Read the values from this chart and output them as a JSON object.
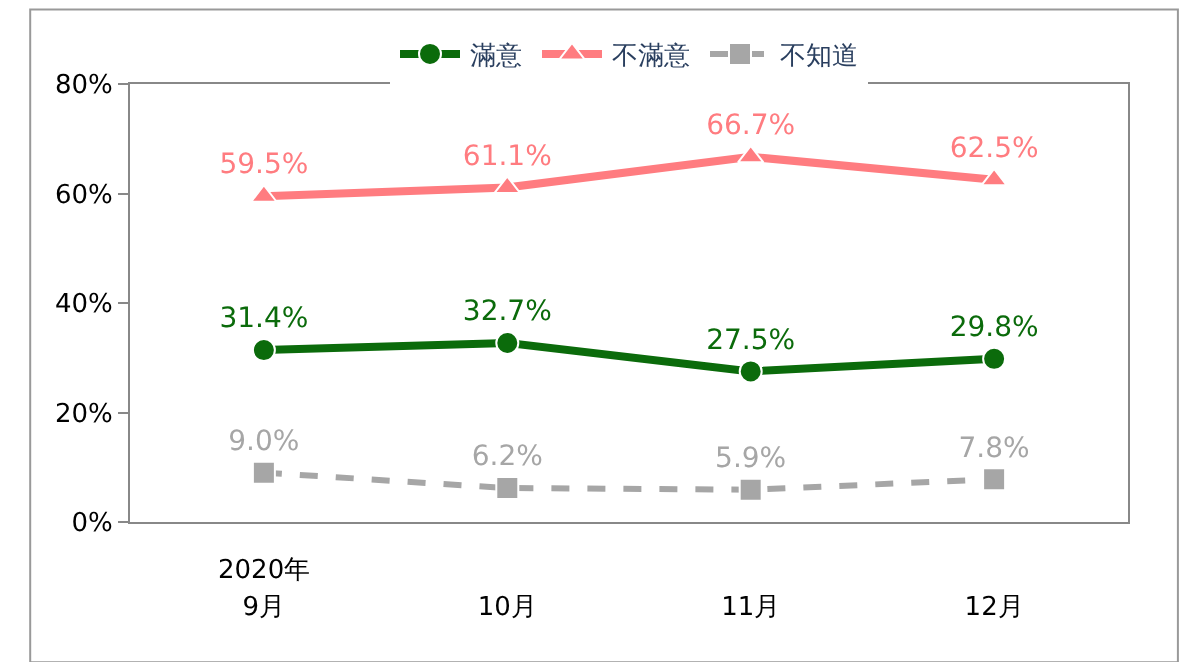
{
  "chart_data": {
    "type": "line",
    "categories": [
      "9月",
      "10月",
      "11月",
      "12月"
    ],
    "series": [
      {
        "name": "滿意",
        "color": "#0b6b0b",
        "marker": "circle",
        "line_style": "solid",
        "values": [
          31.4,
          32.7,
          27.5,
          29.8
        ],
        "value_labels": [
          "31.4%",
          "32.7%",
          "27.5%",
          "29.8%"
        ]
      },
      {
        "name": "不滿意",
        "color": "#ff7c80",
        "marker": "triangle",
        "line_style": "solid",
        "values": [
          59.5,
          61.1,
          66.7,
          62.5
        ],
        "value_labels": [
          "59.5%",
          "61.1%",
          "66.7%",
          "62.5%"
        ]
      },
      {
        "name": "不知道",
        "color": "#a6a6a6",
        "marker": "square",
        "line_style": "dashed",
        "values": [
          9.0,
          6.2,
          5.9,
          7.8
        ],
        "value_labels": [
          "9.0%",
          "6.2%",
          "5.9%",
          "7.8%"
        ]
      }
    ],
    "ylim": [
      0,
      80
    ],
    "yticks": [
      {
        "value": 0,
        "label": "0%"
      },
      {
        "value": 20,
        "label": "20%"
      },
      {
        "value": 40,
        "label": "40%"
      },
      {
        "value": 60,
        "label": "60%"
      },
      {
        "value": 80,
        "label": "80%"
      }
    ],
    "annotations": [
      "2020年"
    ],
    "legend": "top"
  }
}
